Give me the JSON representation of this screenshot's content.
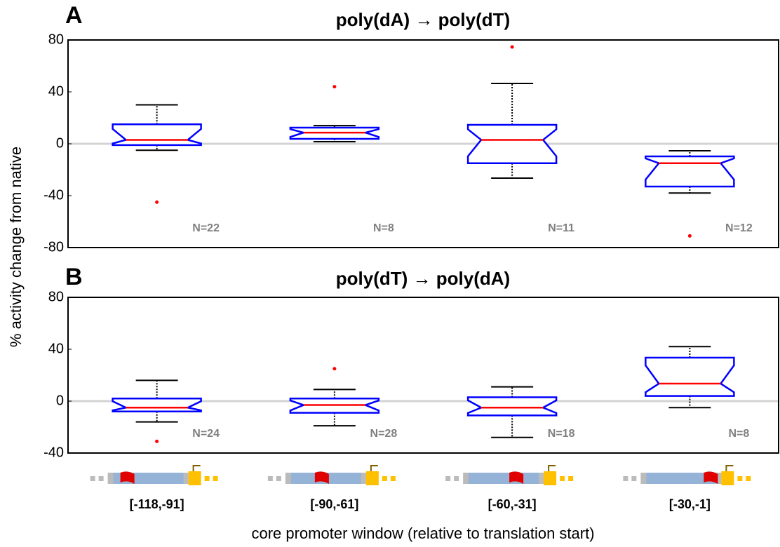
{
  "chart_data": [
    {
      "type": "box",
      "panel_label": "A",
      "title": "poly(dA) → poly(dT)",
      "ylabel": "% activity change  from native",
      "ylim": [
        -80,
        80
      ],
      "yticks": [
        80,
        40,
        0,
        -40,
        -80
      ],
      "box_color": "#0000ff",
      "median_color": "#ff0000",
      "whisker_color": "#000000",
      "flier_color": "#ff0000",
      "zero_line_color": "#d3d3d3",
      "boxes": [
        {
          "whislo": -5,
          "q1": -1,
          "med": 3,
          "q3": 15,
          "whishi": 30,
          "fliers": [
            -45
          ]
        },
        {
          "whislo": 1.6,
          "q1": 3.8,
          "med": 8.6,
          "q3": 12.4,
          "whishi": 14,
          "fliers": [
            44
          ]
        },
        {
          "whislo": -26.5,
          "q1": -15,
          "med": 3,
          "q3": 14.6,
          "whishi": 46.5,
          "fliers": [
            74.6
          ]
        },
        {
          "whislo": -38,
          "q1": -33,
          "med": -15,
          "q3": -9.7,
          "whishi": -5.4,
          "fliers": [
            -71
          ]
        }
      ],
      "count_labels": [
        "N=22",
        "N=8",
        "N=11",
        "N=12"
      ]
    },
    {
      "type": "box",
      "panel_label": "B",
      "title": "poly(dT) → poly(dA)",
      "xlabel": "core promoter window (relative to translation start)",
      "categories": [
        "[-118,-91]",
        "[-90,-61]",
        "[-60,-31]",
        "[-30,-1]"
      ],
      "ylim": [
        -40,
        80
      ],
      "yticks": [
        80,
        40,
        0,
        -40
      ],
      "box_color": "#0000ff",
      "median_color": "#ff0000",
      "whisker_color": "#000000",
      "flier_color": "#ff0000",
      "zero_line_color": "#d3d3d3",
      "boxes": [
        {
          "whislo": -16,
          "q1": -8,
          "med": -5,
          "q3": 2,
          "whishi": 16,
          "fliers": [
            -31
          ]
        },
        {
          "whislo": -19,
          "q1": -9,
          "med": -3,
          "q3": 2,
          "whishi": 9,
          "fliers": [
            25
          ]
        },
        {
          "whislo": -28,
          "q1": -11,
          "med": -5,
          "q3": 3,
          "whishi": 11,
          "fliers": []
        },
        {
          "whislo": -5,
          "q1": 4,
          "med": 13.5,
          "q3": 33.5,
          "whishi": 42,
          "fliers": []
        }
      ],
      "count_labels": [
        "N=24",
        "N=28",
        "N=18",
        "N=8"
      ]
    }
  ]
}
